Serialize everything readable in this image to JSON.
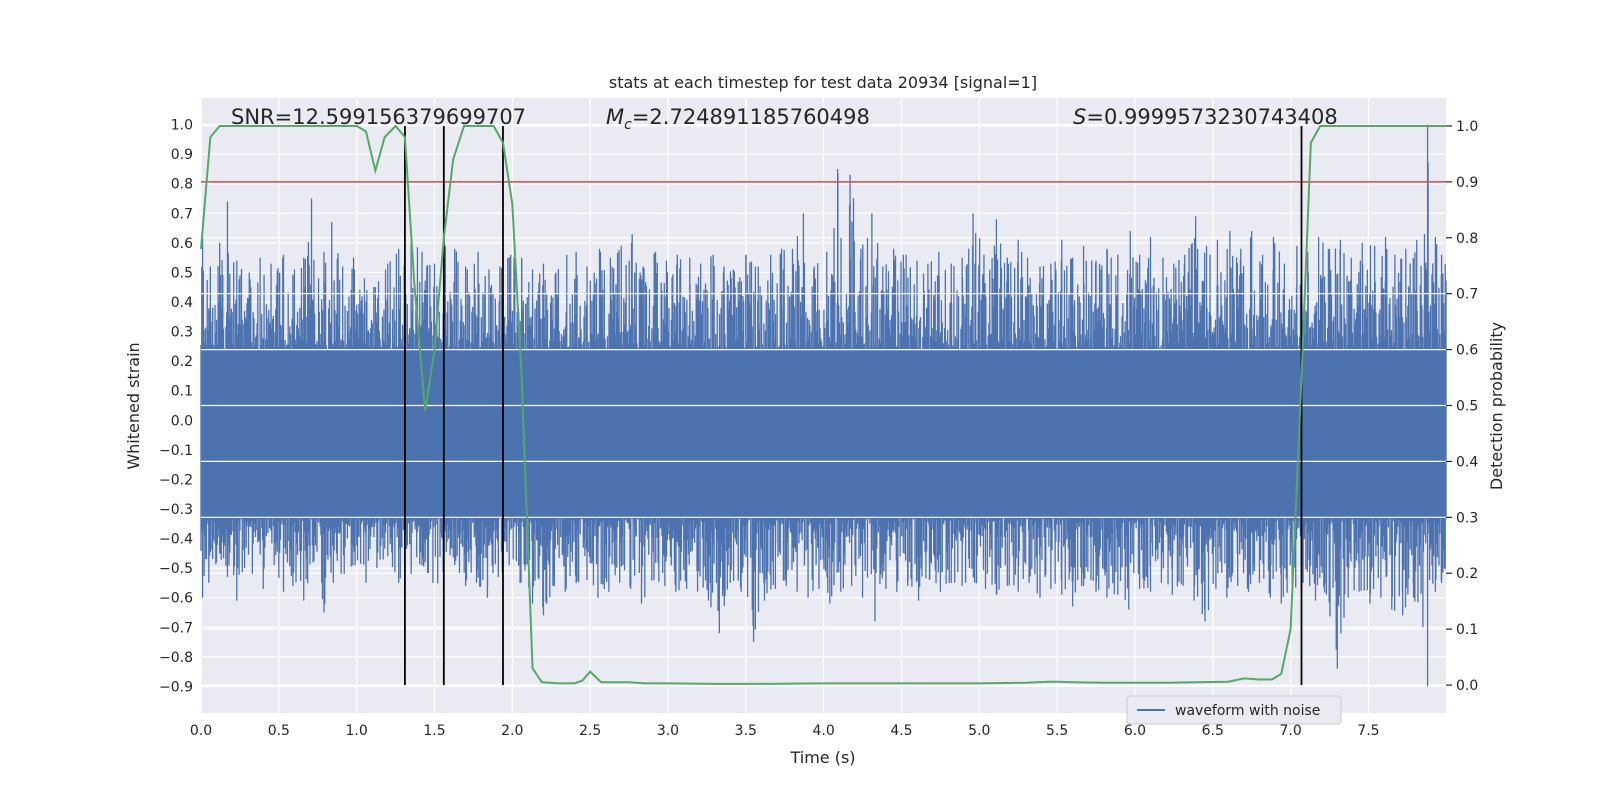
{
  "chart_data": {
    "type": "line",
    "title": "stats at each timestep for test data 20934 [signal=1]",
    "xlabel": "Time (s)",
    "ylabel_left": "Whitened strain",
    "ylabel_right": "Detection probability",
    "xlim": [
      0,
      7.9983
    ],
    "ylim_left": [
      -0.99,
      1.09
    ],
    "ylim_right": [
      -0.05,
      1.05
    ],
    "x_ticks": [
      "0.0",
      "0.5",
      "1.0",
      "1.5",
      "2.0",
      "2.5",
      "3.0",
      "3.5",
      "4.0",
      "4.5",
      "5.0",
      "5.5",
      "6.0",
      "6.5",
      "7.0",
      "7.5"
    ],
    "x_tick_values": [
      0,
      0.5,
      1,
      1.5,
      2,
      2.5,
      3,
      3.5,
      4,
      4.5,
      5,
      5.5,
      6,
      6.5,
      7,
      7.5
    ],
    "y_left_ticks": [
      "1.0",
      "0.9",
      "0.8",
      "0.7",
      "0.6",
      "0.5",
      "0.4",
      "0.3",
      "0.2",
      "0.1",
      "0.0",
      "−0.1",
      "−0.2",
      "−0.3",
      "−0.4",
      "−0.5",
      "−0.6",
      "−0.7",
      "−0.8",
      "−0.9"
    ],
    "y_left_tick_values": [
      1.0,
      0.9,
      0.8,
      0.7,
      0.6,
      0.5,
      0.4,
      0.3,
      0.2,
      0.1,
      0.0,
      -0.1,
      -0.2,
      -0.3,
      -0.4,
      -0.5,
      -0.6,
      -0.7,
      -0.8,
      -0.9
    ],
    "y_right_ticks": [
      "1.0",
      "0.9",
      "0.8",
      "0.7",
      "0.6",
      "0.5",
      "0.4",
      "0.3",
      "0.2",
      "0.1",
      "0.0"
    ],
    "y_right_tick_values": [
      1.0,
      0.9,
      0.8,
      0.7,
      0.6,
      0.5,
      0.4,
      0.3,
      0.2,
      0.1,
      0.0
    ],
    "grid": true,
    "legend": {
      "entries": [
        "waveform with noise"
      ],
      "placement": "lower-right"
    },
    "annotations": {
      "snr_text": "SNR=12.599156379699707",
      "mc_symbol": "M",
      "mc_subscript": "c",
      "mc_value": "=2.724891185760498",
      "s_symbol": "S",
      "s_value": "=0.9999573230743408"
    },
    "threshold": {
      "axis": "right",
      "value": 0.9,
      "color": "#c44e52"
    },
    "vertical_markers": [
      1.31,
      1.56,
      1.94,
      7.07
    ],
    "waveform": {
      "name": "waveform with noise",
      "color": "#4c72b0",
      "band_upper": 0.24,
      "band_lower": -0.33,
      "peaks_positive": [
        [
          0.01,
          0.62
        ],
        [
          0.06,
          0.52
        ],
        [
          0.12,
          0.6
        ],
        [
          0.17,
          0.74
        ],
        [
          0.23,
          0.54
        ],
        [
          0.31,
          0.5
        ],
        [
          0.38,
          0.55
        ],
        [
          0.45,
          0.53
        ],
        [
          0.53,
          0.56
        ],
        [
          0.6,
          0.51
        ],
        [
          0.66,
          0.55
        ],
        [
          0.71,
          0.75
        ],
        [
          0.79,
          0.57
        ],
        [
          0.84,
          0.67
        ],
        [
          0.91,
          0.52
        ],
        [
          0.98,
          0.55
        ],
        [
          1.05,
          0.48
        ],
        [
          1.12,
          0.45
        ],
        [
          1.2,
          0.53
        ],
        [
          1.27,
          0.58
        ],
        [
          1.35,
          0.62
        ],
        [
          1.42,
          0.57
        ],
        [
          1.5,
          0.53
        ],
        [
          1.57,
          0.59
        ],
        [
          1.63,
          0.58
        ],
        [
          1.7,
          0.52
        ],
        [
          1.78,
          0.57
        ],
        [
          1.85,
          0.51
        ],
        [
          1.92,
          0.52
        ],
        [
          1.99,
          0.56
        ],
        [
          2.06,
          0.55
        ],
        [
          2.13,
          0.51
        ],
        [
          2.2,
          0.53
        ],
        [
          2.28,
          0.5
        ],
        [
          2.35,
          0.56
        ],
        [
          2.41,
          0.57
        ],
        [
          2.48,
          0.52
        ],
        [
          2.56,
          0.58
        ],
        [
          2.63,
          0.55
        ],
        [
          2.7,
          0.59
        ],
        [
          2.77,
          0.63
        ],
        [
          2.84,
          0.52
        ],
        [
          2.92,
          0.57
        ],
        [
          2.99,
          0.54
        ],
        [
          3.06,
          0.56
        ],
        [
          3.14,
          0.55
        ],
        [
          3.21,
          0.53
        ],
        [
          3.29,
          0.56
        ],
        [
          3.36,
          0.52
        ],
        [
          3.42,
          0.51
        ],
        [
          3.5,
          0.56
        ],
        [
          3.58,
          0.52
        ],
        [
          3.66,
          0.56
        ],
        [
          3.73,
          0.58
        ],
        [
          3.8,
          0.58
        ],
        [
          3.87,
          0.7
        ],
        [
          3.94,
          0.52
        ],
        [
          4.02,
          0.57
        ],
        [
          4.09,
          0.85
        ],
        [
          4.17,
          0.83
        ],
        [
          4.24,
          0.58
        ],
        [
          4.31,
          0.7
        ],
        [
          4.38,
          0.52
        ],
        [
          4.45,
          0.58
        ],
        [
          4.53,
          0.56
        ],
        [
          4.6,
          0.54
        ],
        [
          4.67,
          0.53
        ],
        [
          4.74,
          0.57
        ],
        [
          4.82,
          0.53
        ],
        [
          4.89,
          0.55
        ],
        [
          4.96,
          0.7
        ],
        [
          5.03,
          0.56
        ],
        [
          5.11,
          0.68
        ],
        [
          5.18,
          0.55
        ],
        [
          5.25,
          0.61
        ],
        [
          5.31,
          0.55
        ],
        [
          5.39,
          0.52
        ],
        [
          5.46,
          0.53
        ],
        [
          5.53,
          0.61
        ],
        [
          5.6,
          0.55
        ],
        [
          5.67,
          0.59
        ],
        [
          5.75,
          0.54
        ],
        [
          5.82,
          0.58
        ],
        [
          5.89,
          0.56
        ],
        [
          5.97,
          0.64
        ],
        [
          6.03,
          0.56
        ],
        [
          6.1,
          0.62
        ],
        [
          6.18,
          0.55
        ],
        [
          6.25,
          0.53
        ],
        [
          6.32,
          0.56
        ],
        [
          6.39,
          0.69
        ],
        [
          6.46,
          0.59
        ],
        [
          6.53,
          0.61
        ],
        [
          6.61,
          0.64
        ],
        [
          6.68,
          0.58
        ],
        [
          6.75,
          0.64
        ],
        [
          6.82,
          0.56
        ],
        [
          6.89,
          0.62
        ],
        [
          6.96,
          0.53
        ],
        [
          7.04,
          0.59
        ],
        [
          7.11,
          0.57
        ],
        [
          7.18,
          0.62
        ],
        [
          7.25,
          0.58
        ],
        [
          7.32,
          0.61
        ],
        [
          7.39,
          0.55
        ],
        [
          7.46,
          0.6
        ],
        [
          7.54,
          0.59
        ],
        [
          7.61,
          0.62
        ],
        [
          7.67,
          0.56
        ],
        [
          7.74,
          0.58
        ],
        [
          7.81,
          0.61
        ],
        [
          7.86,
          0.63
        ],
        [
          7.88,
          1.0
        ],
        [
          7.93,
          0.62
        ],
        [
          7.97,
          0.56
        ]
      ],
      "peaks_negative": [
        [
          0.01,
          -0.6
        ],
        [
          0.05,
          -0.55
        ],
        [
          0.1,
          -0.48
        ],
        [
          0.17,
          -0.53
        ],
        [
          0.23,
          -0.61
        ],
        [
          0.28,
          -0.5
        ],
        [
          0.33,
          -0.52
        ],
        [
          0.4,
          -0.57
        ],
        [
          0.47,
          -0.49
        ],
        [
          0.53,
          -0.58
        ],
        [
          0.59,
          -0.56
        ],
        [
          0.66,
          -0.61
        ],
        [
          0.72,
          -0.48
        ],
        [
          0.79,
          -0.65
        ],
        [
          0.85,
          -0.55
        ],
        [
          0.92,
          -0.52
        ],
        [
          0.99,
          -0.49
        ],
        [
          1.06,
          -0.55
        ],
        [
          1.13,
          -0.5
        ],
        [
          1.2,
          -0.46
        ],
        [
          1.27,
          -0.55
        ],
        [
          1.35,
          -0.52
        ],
        [
          1.42,
          -0.49
        ],
        [
          1.49,
          -0.55
        ],
        [
          1.56,
          -0.58
        ],
        [
          1.63,
          -0.49
        ],
        [
          1.7,
          -0.56
        ],
        [
          1.77,
          -0.55
        ],
        [
          1.84,
          -0.6
        ],
        [
          1.91,
          -0.53
        ],
        [
          1.98,
          -0.49
        ],
        [
          2.05,
          -0.55
        ],
        [
          2.13,
          -0.62
        ],
        [
          2.2,
          -0.66
        ],
        [
          2.27,
          -0.56
        ],
        [
          2.34,
          -0.58
        ],
        [
          2.41,
          -0.55
        ],
        [
          2.48,
          -0.54
        ],
        [
          2.55,
          -0.6
        ],
        [
          2.62,
          -0.58
        ],
        [
          2.69,
          -0.55
        ],
        [
          2.76,
          -0.57
        ],
        [
          2.83,
          -0.62
        ],
        [
          2.91,
          -0.54
        ],
        [
          2.98,
          -0.56
        ],
        [
          3.05,
          -0.58
        ],
        [
          3.12,
          -0.57
        ],
        [
          3.19,
          -0.58
        ],
        [
          3.26,
          -0.61
        ],
        [
          3.33,
          -0.72
        ],
        [
          3.4,
          -0.55
        ],
        [
          3.47,
          -0.58
        ],
        [
          3.55,
          -0.75
        ],
        [
          3.62,
          -0.61
        ],
        [
          3.69,
          -0.57
        ],
        [
          3.76,
          -0.56
        ],
        [
          3.83,
          -0.58
        ],
        [
          3.9,
          -0.6
        ],
        [
          3.97,
          -0.57
        ],
        [
          4.04,
          -0.62
        ],
        [
          4.11,
          -0.58
        ],
        [
          4.18,
          -0.56
        ],
        [
          4.25,
          -0.6
        ],
        [
          4.33,
          -0.68
        ],
        [
          4.4,
          -0.57
        ],
        [
          4.47,
          -0.58
        ],
        [
          4.54,
          -0.56
        ],
        [
          4.61,
          -0.61
        ],
        [
          4.68,
          -0.54
        ],
        [
          4.75,
          -0.58
        ],
        [
          4.82,
          -0.55
        ],
        [
          4.89,
          -0.56
        ],
        [
          4.97,
          -0.55
        ],
        [
          5.04,
          -0.57
        ],
        [
          5.11,
          -0.59
        ],
        [
          5.18,
          -0.56
        ],
        [
          5.25,
          -0.58
        ],
        [
          5.32,
          -0.55
        ],
        [
          5.39,
          -0.6
        ],
        [
          5.46,
          -0.57
        ],
        [
          5.53,
          -0.59
        ],
        [
          5.6,
          -0.63
        ],
        [
          5.67,
          -0.56
        ],
        [
          5.75,
          -0.58
        ],
        [
          5.82,
          -0.6
        ],
        [
          5.89,
          -0.59
        ],
        [
          5.96,
          -0.64
        ],
        [
          6.03,
          -0.57
        ],
        [
          6.1,
          -0.58
        ],
        [
          6.17,
          -0.55
        ],
        [
          6.24,
          -0.59
        ],
        [
          6.31,
          -0.56
        ],
        [
          6.38,
          -0.61
        ],
        [
          6.45,
          -0.68
        ],
        [
          6.52,
          -0.57
        ],
        [
          6.59,
          -0.6
        ],
        [
          6.66,
          -0.56
        ],
        [
          6.73,
          -0.58
        ],
        [
          6.8,
          -0.55
        ],
        [
          6.87,
          -0.6
        ],
        [
          6.94,
          -0.62
        ],
        [
          7.01,
          -0.58
        ],
        [
          7.08,
          -0.55
        ],
        [
          7.16,
          -0.61
        ],
        [
          7.23,
          -0.59
        ],
        [
          7.3,
          -0.84
        ],
        [
          7.37,
          -0.6
        ],
        [
          7.44,
          -0.58
        ],
        [
          7.51,
          -0.62
        ],
        [
          7.58,
          -0.6
        ],
        [
          7.65,
          -0.64
        ],
        [
          7.72,
          -0.66
        ],
        [
          7.79,
          -0.6
        ],
        [
          7.85,
          -0.7
        ],
        [
          7.88,
          -0.9
        ],
        [
          7.93,
          -0.58
        ],
        [
          7.97,
          -0.55
        ]
      ]
    },
    "probability": {
      "axis": "right",
      "color": "#55a868",
      "x": [
        0.0,
        0.06,
        0.12,
        0.2,
        0.3,
        0.4,
        0.5,
        0.6,
        0.7,
        0.8,
        0.9,
        1.0,
        1.06,
        1.12,
        1.18,
        1.25,
        1.31,
        1.37,
        1.44,
        1.5,
        1.56,
        1.62,
        1.69,
        1.75,
        1.81,
        1.88,
        1.94,
        2.0,
        2.06,
        2.13,
        2.19,
        2.3,
        2.4,
        2.45,
        2.5,
        2.57,
        2.65,
        2.75,
        2.85,
        3.0,
        3.3,
        3.5,
        4.0,
        4.5,
        5.0,
        5.3,
        5.45,
        5.5,
        5.6,
        5.8,
        6.0,
        6.2,
        6.4,
        6.6,
        6.7,
        6.8,
        6.88,
        6.94,
        7.0,
        7.07,
        7.13,
        7.19,
        7.25,
        7.5,
        7.9983
      ],
      "y": [
        0.78,
        0.98,
        1.0,
        1.0,
        1.0,
        1.0,
        1.0,
        1.0,
        1.0,
        1.0,
        1.0,
        1.0,
        0.99,
        0.92,
        0.98,
        1.0,
        0.98,
        0.72,
        0.49,
        0.6,
        0.8,
        0.94,
        1.0,
        1.0,
        1.0,
        1.0,
        0.97,
        0.86,
        0.55,
        0.03,
        0.005,
        0.003,
        0.003,
        0.008,
        0.024,
        0.005,
        0.005,
        0.005,
        0.003,
        0.003,
        0.002,
        0.002,
        0.003,
        0.003,
        0.003,
        0.004,
        0.006,
        0.006,
        0.005,
        0.004,
        0.004,
        0.004,
        0.005,
        0.006,
        0.012,
        0.01,
        0.01,
        0.02,
        0.1,
        0.55,
        0.97,
        1.0,
        1.0,
        1.0,
        1.0
      ]
    }
  }
}
